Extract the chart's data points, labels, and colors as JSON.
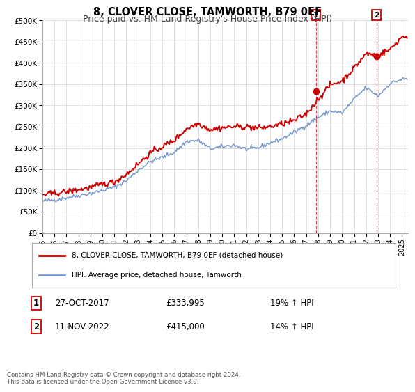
{
  "title": "8, CLOVER CLOSE, TAMWORTH, B79 0EF",
  "subtitle": "Price paid vs. HM Land Registry's House Price Index (HPI)",
  "ylim": [
    0,
    500000
  ],
  "yticks": [
    0,
    50000,
    100000,
    150000,
    200000,
    250000,
    300000,
    350000,
    400000,
    450000,
    500000
  ],
  "ytick_labels": [
    "£0",
    "£50K",
    "£100K",
    "£150K",
    "£200K",
    "£250K",
    "£300K",
    "£350K",
    "£400K",
    "£450K",
    "£500K"
  ],
  "xlim_start": 1995.0,
  "xlim_end": 2025.5,
  "xtick_years": [
    1995,
    1996,
    1997,
    1998,
    1999,
    2000,
    2001,
    2002,
    2003,
    2004,
    2005,
    2006,
    2007,
    2008,
    2009,
    2010,
    2011,
    2012,
    2013,
    2014,
    2015,
    2016,
    2017,
    2018,
    2019,
    2020,
    2021,
    2022,
    2023,
    2024,
    2025
  ],
  "red_line_color": "#cc0000",
  "blue_line_color": "#7799cc",
  "grid_color": "#dddddd",
  "background_color": "#ffffff",
  "marker1_year": 2017.82,
  "marker1_value": 333995,
  "marker2_year": 2022.87,
  "marker2_value": 415000,
  "vline1_year": 2017.82,
  "vline2_year": 2022.87,
  "legend_entry1": "8, CLOVER CLOSE, TAMWORTH, B79 0EF (detached house)",
  "legend_entry2": "HPI: Average price, detached house, Tamworth",
  "annotation1_label": "1",
  "annotation1_date": "27-OCT-2017",
  "annotation1_price": "£333,995",
  "annotation1_hpi": "19% ↑ HPI",
  "annotation2_label": "2",
  "annotation2_date": "11-NOV-2022",
  "annotation2_price": "£415,000",
  "annotation2_hpi": "14% ↑ HPI",
  "footnote": "Contains HM Land Registry data © Crown copyright and database right 2024.\nThis data is licensed under the Open Government Licence v3.0.",
  "title_fontsize": 10.5,
  "subtitle_fontsize": 9,
  "hpi_base": {
    "1995": 75000,
    "1996": 78000,
    "1997": 83000,
    "1998": 88000,
    "1999": 93000,
    "2000": 100000,
    "2001": 108000,
    "2002": 123000,
    "2003": 148000,
    "2004": 168000,
    "2005": 178000,
    "2006": 190000,
    "2007": 215000,
    "2008": 218000,
    "2009": 198000,
    "2010": 203000,
    "2011": 207000,
    "2012": 197000,
    "2013": 200000,
    "2014": 212000,
    "2015": 222000,
    "2016": 237000,
    "2017": 253000,
    "2018": 272000,
    "2019": 287000,
    "2020": 282000,
    "2021": 315000,
    "2022": 342000,
    "2023": 322000,
    "2024": 352000,
    "2025": 362000
  },
  "price_base": {
    "1995": 90000,
    "1996": 93000,
    "1997": 97000,
    "1998": 102000,
    "1999": 107000,
    "2000": 115000,
    "2001": 120000,
    "2002": 138000,
    "2003": 163000,
    "2004": 188000,
    "2005": 203000,
    "2006": 218000,
    "2007": 245000,
    "2008": 258000,
    "2009": 243000,
    "2010": 248000,
    "2011": 250000,
    "2012": 250000,
    "2013": 247000,
    "2014": 250000,
    "2015": 257000,
    "2016": 264000,
    "2017": 280000,
    "2018": 315000,
    "2019": 348000,
    "2020": 358000,
    "2021": 388000,
    "2022": 422000,
    "2023": 418000,
    "2024": 432000,
    "2025": 462000
  }
}
